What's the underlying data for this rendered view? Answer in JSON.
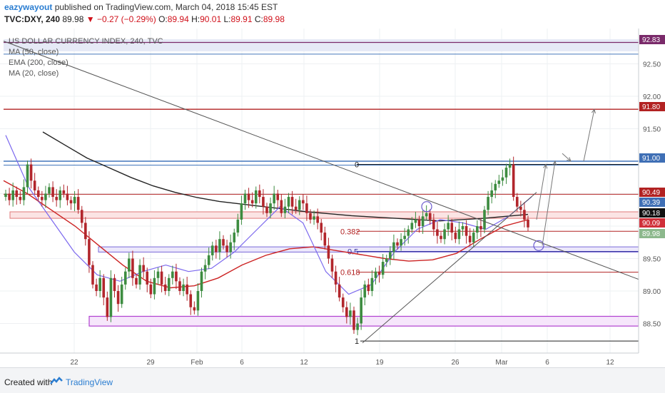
{
  "header": {
    "user": "eazywayout",
    "published": "published on TradingView.com, March 04, 2018 15:45 EST",
    "symbol": "TVC:DXY, 240",
    "last": "89.98",
    "change_arrow": "▼",
    "change": "−0.27 (−0.29%)",
    "o_label": "O:",
    "o_value": "89.94",
    "h_label": "H:",
    "h_value": "90.01",
    "l_label": "L:",
    "l_value": "89.91",
    "c_label": "C:",
    "c_value": "89.98"
  },
  "legend": {
    "title": "US DOLLAR CURRENCY INDEX, 240, TVC",
    "ma50": "MA (50, close)",
    "ema200": "EMA (200, close)",
    "ma20": "MA (20, close)"
  },
  "footer": {
    "created": "Created with",
    "brand": "TradingView"
  },
  "colors": {
    "up": "#3d8c40",
    "down": "#b2262c",
    "resistance": "#b22222",
    "blue_line": "#4477bb",
    "support_box": "#b040d0",
    "ema200": "#222222",
    "ma50": "#cc2222",
    "ma20": "#7b68ee",
    "trend": "#555555"
  },
  "chart_data": {
    "type": "candlestick",
    "x_ticks": [
      "22",
      "29",
      "Feb",
      "6",
      "12",
      "19",
      "26",
      "Mar",
      "6",
      "12"
    ],
    "y_ticks": [
      "92.50",
      "92.00",
      "91.50",
      "89.50",
      "89.00",
      "88.50"
    ],
    "ylim": [
      88.1,
      93.0
    ],
    "price_labels": [
      "92.83",
      "91.80",
      "91.00",
      "90.49",
      "90.39",
      "90.18",
      "90.09",
      "89.98"
    ],
    "horizontal_levels": [
      92.83,
      91.8,
      91.0,
      90.49,
      90.18,
      89.92,
      89.61,
      89.29,
      88.6,
      88.23
    ],
    "fib_labels": [
      "0",
      "0.382",
      "0.5",
      "0.618",
      "1"
    ],
    "fib_levels": [
      90.95,
      89.92,
      89.61,
      89.29,
      88.23
    ],
    "close": [
      90.5,
      90.4,
      90.55,
      90.45,
      90.4,
      90.6,
      90.95,
      90.7,
      90.55,
      90.45,
      90.4,
      90.5,
      90.6,
      90.45,
      90.4,
      90.55,
      90.5,
      90.4,
      90.35,
      90.45,
      90.25,
      90.05,
      89.8,
      89.4,
      89.1,
      89.0,
      89.2,
      88.9,
      88.6,
      89.2,
      89.0,
      88.8,
      89.1,
      89.3,
      89.5,
      89.2,
      89.1,
      89.4,
      89.3,
      89.1,
      88.95,
      89.2,
      89.3,
      89.1,
      89.0,
      89.2,
      89.3,
      89.15,
      89.0,
      89.1,
      88.95,
      88.75,
      88.7,
      89.0,
      89.3,
      89.4,
      89.55,
      89.7,
      89.6,
      89.8,
      89.7,
      89.6,
      89.75,
      89.9,
      90.1,
      90.35,
      90.5,
      90.4,
      90.35,
      90.55,
      90.45,
      90.3,
      90.2,
      90.35,
      90.5,
      90.4,
      90.2,
      90.3,
      90.45,
      90.3,
      90.25,
      90.4,
      90.35,
      90.2,
      90.1,
      90.15,
      90.05,
      89.9,
      89.7,
      89.5,
      89.3,
      89.1,
      88.9,
      88.75,
      88.6,
      88.7,
      88.4,
      88.5,
      88.9,
      89.1,
      89.0,
      89.2,
      89.3,
      89.25,
      89.45,
      89.5,
      89.6,
      89.75,
      89.7,
      89.8,
      89.85,
      89.95,
      90.05,
      90.1,
      90.0,
      90.15,
      90.2,
      90.1,
      89.95,
      89.85,
      89.8,
      89.95,
      90.05,
      89.9,
      89.8,
      89.95,
      90.0,
      89.85,
      89.75,
      89.9,
      90.0,
      89.95,
      90.25,
      90.45,
      90.55,
      90.65,
      90.7,
      90.75,
      90.9,
      90.95,
      90.45,
      90.3,
      90.25,
      90.1,
      89.98
    ],
    "ema200": [
      91.45,
      91.25,
      91.05,
      90.9,
      90.75,
      90.62,
      90.52,
      90.44,
      90.38,
      90.34,
      90.3,
      90.26,
      90.22,
      90.19,
      90.16,
      90.14,
      90.12,
      90.1,
      90.08,
      90.1,
      90.12,
      90.15,
      90.18
    ],
    "ma50": [
      90.7,
      90.5,
      90.25,
      90.0,
      89.7,
      89.4,
      89.15,
      89.05,
      89.08,
      89.2,
      89.4,
      89.55,
      89.65,
      89.68,
      89.62,
      89.56,
      89.5,
      89.46,
      89.48,
      89.58,
      89.8,
      90.0,
      90.1
    ],
    "ma20": [
      91.4,
      90.6,
      90.1,
      89.6,
      89.25,
      89.15,
      89.3,
      89.4,
      89.3,
      89.35,
      89.6,
      89.95,
      90.3,
      90.05,
      89.3,
      88.95,
      89.1,
      89.6,
      89.95,
      90.1,
      90.05,
      89.95,
      90.15,
      90.45
    ]
  }
}
